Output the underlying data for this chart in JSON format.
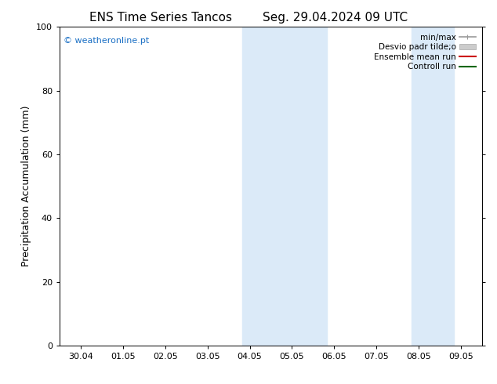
{
  "title_left": "ENS Time Series Tancos",
  "title_right": "Seg. 29.04.2024 09 UTC",
  "ylabel": "Precipitation Accumulation (mm)",
  "ylim": [
    0,
    100
  ],
  "yticks": [
    0,
    20,
    40,
    60,
    80,
    100
  ],
  "x_tick_labels": [
    "30.04",
    "01.05",
    "02.05",
    "03.05",
    "04.05",
    "05.05",
    "06.05",
    "07.05",
    "08.05",
    "09.05"
  ],
  "x_tick_positions": [
    0,
    1,
    2,
    3,
    4,
    5,
    6,
    7,
    8,
    9
  ],
  "xlim": [
    -0.5,
    9.5
  ],
  "shaded_regions": [
    {
      "x_start": 3.83,
      "x_end": 4.5,
      "color": "#deeaf5"
    },
    {
      "x_start": 4.5,
      "x_end": 5.83,
      "color": "#deeaf5"
    },
    {
      "x_start": 7.83,
      "x_end": 8.5,
      "color": "#deeaf5"
    },
    {
      "x_start": 8.5,
      "x_end": 8.83,
      "color": "#deeaf5"
    }
  ],
  "shaded_bands": [
    {
      "x_start": 3.83,
      "x_end": 5.83,
      "color": "#dbeaf8"
    },
    {
      "x_start": 7.83,
      "x_end": 8.83,
      "color": "#dbeaf8"
    }
  ],
  "watermark_text": "© weatheronline.pt",
  "watermark_color": "#1a6fc4",
  "legend_entries": [
    {
      "label": "min/max",
      "color": "#999999",
      "linestyle": "-",
      "linewidth": 1.2,
      "type": "errorbar"
    },
    {
      "label": "Desvio padr tilde;o",
      "color": "#cccccc",
      "linestyle": "-",
      "linewidth": 8,
      "type": "band"
    },
    {
      "label": "Ensemble mean run",
      "color": "#cc0000",
      "linestyle": "-",
      "linewidth": 1.5,
      "type": "line"
    },
    {
      "label": "Controll run",
      "color": "#006600",
      "linestyle": "-",
      "linewidth": 1.5,
      "type": "line"
    }
  ],
  "background_color": "#ffffff",
  "plot_bg_color": "#ffffff",
  "title_fontsize": 11,
  "tick_fontsize": 8,
  "ylabel_fontsize": 9,
  "legend_fontsize": 7.5
}
